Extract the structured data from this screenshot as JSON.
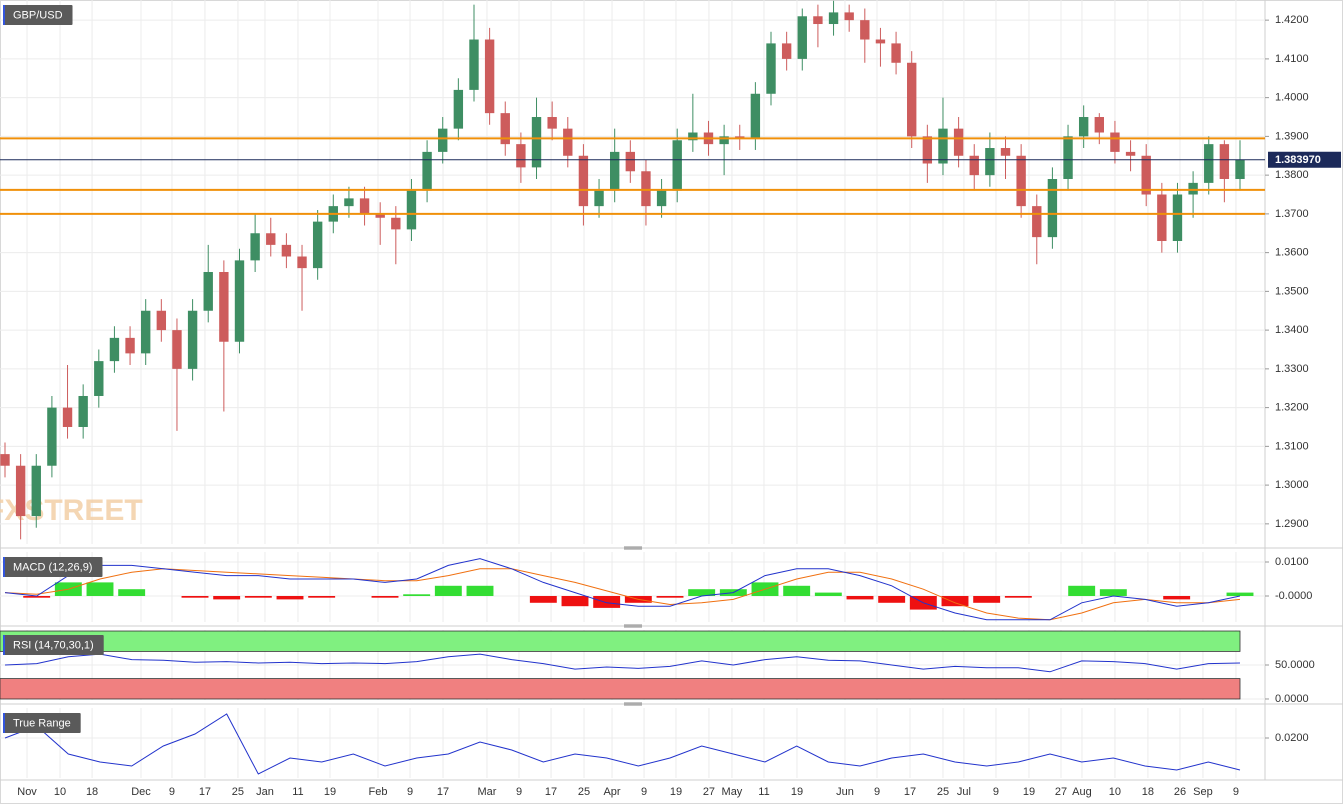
{
  "chart_data": [
    {
      "type": "candlestick",
      "title": "GBP/USD",
      "watermark": "FXSTREET",
      "up_color": "#3e8e63",
      "down_color": "#cd5c5c",
      "open": [
        1.308,
        1.305,
        1.292,
        1.305,
        1.32,
        1.315,
        1.323,
        1.332,
        1.338,
        1.334,
        1.345,
        1.34,
        1.33,
        1.345,
        1.355,
        1.337,
        1.358,
        1.365,
        1.362,
        1.359,
        1.356,
        1.368,
        1.372,
        1.374,
        1.37,
        1.369,
        1.366,
        1.376,
        1.386,
        1.392,
        1.402,
        1.415,
        1.396,
        1.388,
        1.382,
        1.395,
        1.392,
        1.385,
        1.372,
        1.376,
        1.386,
        1.381,
        1.372,
        1.376,
        1.389,
        1.391,
        1.388,
        1.39,
        1.3895,
        1.401,
        1.414,
        1.41,
        1.421,
        1.419,
        1.422,
        1.42,
        1.415,
        1.414,
        1.409,
        1.39,
        1.383,
        1.392,
        1.385,
        1.38,
        1.387,
        1.385,
        1.372,
        1.364,
        1.379,
        1.39,
        1.395,
        1.391,
        1.386,
        1.385,
        1.375,
        1.363,
        1.375,
        1.378,
        1.388,
        1.379
      ],
      "high": [
        1.311,
        1.308,
        1.308,
        1.323,
        1.331,
        1.326,
        1.335,
        1.341,
        1.341,
        1.348,
        1.348,
        1.343,
        1.348,
        1.362,
        1.358,
        1.361,
        1.37,
        1.369,
        1.365,
        1.362,
        1.371,
        1.375,
        1.377,
        1.377,
        1.373,
        1.372,
        1.379,
        1.389,
        1.395,
        1.405,
        1.424,
        1.418,
        1.399,
        1.391,
        1.4,
        1.399,
        1.395,
        1.388,
        1.379,
        1.392,
        1.389,
        1.384,
        1.379,
        1.392,
        1.401,
        1.394,
        1.393,
        1.393,
        1.404,
        1.417,
        1.417,
        1.423,
        1.424,
        1.425,
        1.424,
        1.423,
        1.418,
        1.417,
        1.412,
        1.393,
        1.4,
        1.395,
        1.388,
        1.391,
        1.39,
        1.388,
        1.375,
        1.382,
        1.393,
        1.398,
        1.396,
        1.394,
        1.389,
        1.388,
        1.378,
        1.378,
        1.381,
        1.39,
        1.389,
        1.389
      ],
      "low": [
        1.302,
        1.286,
        1.289,
        1.302,
        1.312,
        1.312,
        1.32,
        1.329,
        1.331,
        1.331,
        1.337,
        1.314,
        1.327,
        1.342,
        1.319,
        1.334,
        1.355,
        1.359,
        1.356,
        1.345,
        1.353,
        1.365,
        1.369,
        1.367,
        1.362,
        1.357,
        1.363,
        1.373,
        1.383,
        1.389,
        1.399,
        1.393,
        1.385,
        1.378,
        1.379,
        1.389,
        1.382,
        1.367,
        1.369,
        1.373,
        1.378,
        1.367,
        1.369,
        1.373,
        1.386,
        1.385,
        1.38,
        1.3865,
        1.3865,
        1.398,
        1.407,
        1.407,
        1.413,
        1.416,
        1.417,
        1.409,
        1.408,
        1.406,
        1.387,
        1.378,
        1.38,
        1.382,
        1.376,
        1.377,
        1.379,
        1.369,
        1.357,
        1.361,
        1.376,
        1.387,
        1.388,
        1.383,
        1.381,
        1.372,
        1.36,
        1.36,
        1.369,
        1.375,
        1.373,
        1.376
      ],
      "close": [
        1.305,
        1.292,
        1.305,
        1.32,
        1.315,
        1.323,
        1.332,
        1.338,
        1.334,
        1.345,
        1.34,
        1.33,
        1.345,
        1.355,
        1.337,
        1.358,
        1.365,
        1.362,
        1.359,
        1.356,
        1.368,
        1.372,
        1.374,
        1.37,
        1.369,
        1.366,
        1.376,
        1.386,
        1.392,
        1.402,
        1.415,
        1.396,
        1.388,
        1.382,
        1.395,
        1.392,
        1.385,
        1.372,
        1.376,
        1.386,
        1.381,
        1.372,
        1.376,
        1.389,
        1.391,
        1.388,
        1.39,
        1.3895,
        1.401,
        1.414,
        1.41,
        1.421,
        1.419,
        1.422,
        1.42,
        1.415,
        1.414,
        1.409,
        1.39,
        1.383,
        1.392,
        1.385,
        1.38,
        1.387,
        1.385,
        1.372,
        1.364,
        1.379,
        1.39,
        1.395,
        1.391,
        1.386,
        1.385,
        1.375,
        1.363,
        1.375,
        1.378,
        1.388,
        1.379,
        1.384
      ],
      "ylim": [
        1.2848,
        1.4252
      ],
      "yticks": [
        {
          "value": 1.42,
          "label": "1.4200"
        },
        {
          "value": 1.41,
          "label": "1.4100"
        },
        {
          "value": 1.4,
          "label": "1.4000"
        },
        {
          "value": 1.39,
          "label": "1.3900"
        },
        {
          "value": 1.38,
          "label": "1.3800"
        },
        {
          "value": 1.37,
          "label": "1.3700"
        },
        {
          "value": 1.36,
          "label": "1.3600"
        },
        {
          "value": 1.35,
          "label": "1.3500"
        },
        {
          "value": 1.34,
          "label": "1.3400"
        },
        {
          "value": 1.33,
          "label": "1.3300"
        },
        {
          "value": 1.32,
          "label": "1.3200"
        },
        {
          "value": 1.31,
          "label": "1.3100"
        },
        {
          "value": 1.3,
          "label": "1.3000"
        },
        {
          "value": 1.29,
          "label": "1.2900"
        }
      ],
      "xticks": [
        {
          "value": 1.41,
          "label": "Nov"
        },
        {
          "value": 3.52,
          "label": "10"
        },
        {
          "value": 5.57,
          "label": "18"
        },
        {
          "value": 8.7,
          "label": "Dec"
        },
        {
          "value": 10.68,
          "label": "9"
        },
        {
          "value": 12.79,
          "label": "17"
        },
        {
          "value": 14.9,
          "label": "25"
        },
        {
          "value": 16.63,
          "label": "Jan"
        },
        {
          "value": 18.74,
          "label": "11"
        },
        {
          "value": 20.79,
          "label": "19"
        },
        {
          "value": 23.86,
          "label": "Feb"
        },
        {
          "value": 25.91,
          "label": "9"
        },
        {
          "value": 28.02,
          "label": "17"
        },
        {
          "value": 30.83,
          "label": "Mar"
        },
        {
          "value": 32.88,
          "label": "9"
        },
        {
          "value": 34.93,
          "label": "17"
        },
        {
          "value": 37.04,
          "label": "25"
        },
        {
          "value": 38.83,
          "label": "Apr"
        },
        {
          "value": 40.88,
          "label": "9"
        },
        {
          "value": 42.92,
          "label": "19"
        },
        {
          "value": 45.03,
          "label": "27"
        },
        {
          "value": 46.5,
          "label": "May"
        },
        {
          "value": 48.55,
          "label": "11"
        },
        {
          "value": 50.66,
          "label": "19"
        },
        {
          "value": 53.73,
          "label": "Jun"
        },
        {
          "value": 55.78,
          "label": "9"
        },
        {
          "value": 57.89,
          "label": "17"
        },
        {
          "value": 60.0,
          "label": "25"
        },
        {
          "value": 61.34,
          "label": "Jul"
        },
        {
          "value": 63.39,
          "label": "9"
        },
        {
          "value": 65.5,
          "label": "19"
        },
        {
          "value": 67.55,
          "label": "27"
        },
        {
          "value": 68.89,
          "label": "Aug"
        },
        {
          "value": 71.0,
          "label": "10"
        },
        {
          "value": 73.11,
          "label": "18"
        },
        {
          "value": 75.16,
          "label": "26"
        },
        {
          "value": 76.63,
          "label": "Sep"
        },
        {
          "value": 78.74,
          "label": "9"
        }
      ],
      "hlines": [
        {
          "value": 1.3895,
          "color": "#f0900a"
        },
        {
          "value": 1.3762,
          "color": "#f0900a"
        },
        {
          "value": 1.37,
          "color": "#f0900a"
        }
      ],
      "last_price": {
        "value": 1.38397,
        "value_label": "1.383970",
        "color": "#1c2a5a"
      }
    },
    {
      "type": "macd",
      "title": "MACD (12,26,9)",
      "macd": {
        "color": "#2233cc",
        "values": [
          0.001,
          0.0,
          0.006,
          0.009,
          0.009,
          0.008,
          0.007,
          0.006,
          0.006,
          0.005,
          0.005,
          0.005,
          0.004,
          0.005,
          0.009,
          0.011,
          0.008,
          0.004,
          0.001,
          -0.002,
          -0.003,
          -0.003,
          0.0,
          0.001,
          0.006,
          0.008,
          0.008,
          0.006,
          0.003,
          -0.002,
          -0.005,
          -0.007,
          -0.007,
          -0.007,
          -0.002,
          0.0,
          -0.001,
          -0.003,
          -0.002,
          0.0
        ]
      },
      "signal": {
        "color": "#f07010",
        "values": [
          0.001,
          0.0005,
          0.002,
          0.005,
          0.007,
          0.008,
          0.0075,
          0.007,
          0.0065,
          0.006,
          0.0055,
          0.005,
          0.0045,
          0.0045,
          0.006,
          0.008,
          0.008,
          0.006,
          0.004,
          0.0015,
          -0.001,
          -0.0025,
          -0.002,
          -0.001,
          0.002,
          0.005,
          0.007,
          0.007,
          0.005,
          0.002,
          -0.002,
          -0.005,
          -0.0065,
          -0.007,
          -0.005,
          -0.002,
          -0.001,
          -0.002,
          -0.002,
          -0.001
        ]
      },
      "histogram": {
        "colors": [
          "#33dd33",
          "#ee1111"
        ],
        "values": [
          0.0,
          -0.0005,
          0.004,
          0.004,
          0.002,
          0.0,
          -0.0005,
          -0.001,
          -0.0005,
          -0.001,
          -0.0005,
          0.0,
          -0.0005,
          0.0005,
          0.003,
          0.003,
          0.0,
          -0.002,
          -0.003,
          -0.0035,
          -0.002,
          -0.0005,
          0.002,
          0.002,
          0.004,
          0.003,
          0.001,
          -0.001,
          -0.002,
          -0.004,
          -0.003,
          -0.002,
          -0.0005,
          0.0,
          0.003,
          0.002,
          0.0,
          -0.001,
          0.0,
          0.001
        ]
      },
      "ylim": [
        -0.00765,
        0.01294
      ],
      "yticks": [
        {
          "value": 0.01,
          "label": "0.0100"
        },
        {
          "value": 0,
          "label": "-0.0000"
        }
      ]
    },
    {
      "type": "rsi",
      "title": "RSI (14,70,30,1)",
      "color": "#2233cc",
      "values": [
        50,
        52,
        62,
        66,
        58,
        57,
        54,
        55,
        53,
        54,
        52,
        53,
        52,
        55,
        62,
        66,
        58,
        52,
        44,
        47,
        45,
        48,
        56,
        50,
        58,
        62,
        57,
        56,
        50,
        44,
        48,
        46,
        46,
        40,
        56,
        55,
        52,
        44,
        52,
        53
      ],
      "upper_band": [
        70,
        100
      ],
      "upper_color": "#80f080",
      "lower_band": [
        0,
        30
      ],
      "lower_color": "#f08080",
      "ylim": [
        -1.5,
        101.5
      ],
      "yticks": [
        {
          "value": 50,
          "label": "50.0000"
        },
        {
          "value": 0,
          "label": "0.0000"
        }
      ]
    },
    {
      "type": "line",
      "title": "True Range",
      "color": "#2233cc",
      "values": [
        0.02,
        0.023,
        0.016,
        0.014,
        0.013,
        0.018,
        0.021,
        0.026,
        0.011,
        0.015,
        0.014,
        0.016,
        0.013,
        0.015,
        0.016,
        0.019,
        0.017,
        0.014,
        0.016,
        0.015,
        0.013,
        0.015,
        0.018,
        0.016,
        0.014,
        0.018,
        0.014,
        0.013,
        0.015,
        0.016,
        0.014,
        0.013,
        0.014,
        0.016,
        0.014,
        0.015,
        0.013,
        0.012,
        0.014,
        0.012
      ],
      "ylim": [
        0.01,
        0.0275
      ],
      "yticks": [
        {
          "value": 0.02,
          "label": "0.0200"
        }
      ]
    }
  ]
}
